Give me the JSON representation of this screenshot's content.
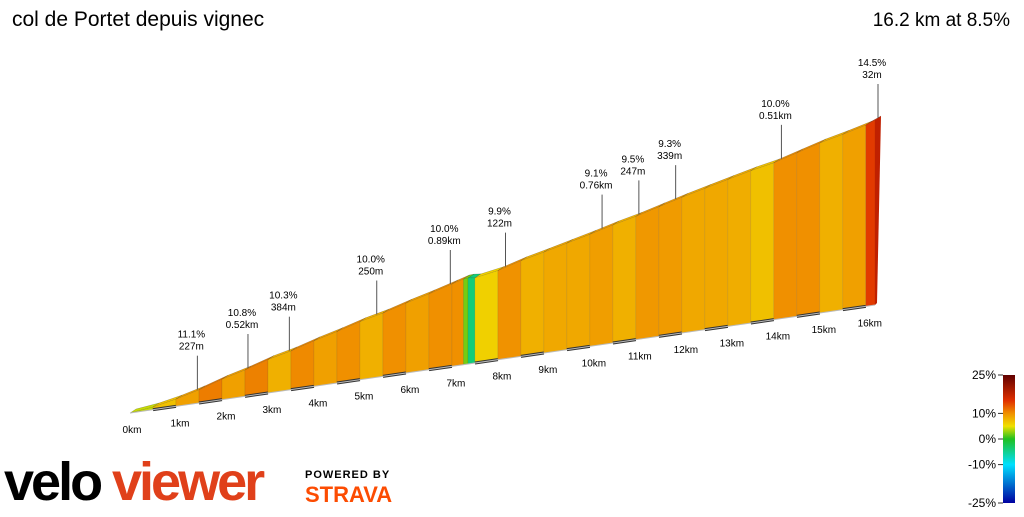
{
  "chart_data": {
    "type": "profile",
    "title": "col de Portet depuis vignec",
    "summary": "16.2 km at 8.5%",
    "x": [
      0,
      0.5,
      1,
      1.5,
      2,
      2.5,
      3,
      3.5,
      4,
      4.5,
      5,
      5.5,
      6,
      6.5,
      7,
      7.25,
      7.35,
      7.5,
      8,
      8.5,
      9,
      9.5,
      10,
      10.5,
      11,
      11.5,
      12,
      12.5,
      13,
      13.5,
      14,
      14.5,
      15,
      15.5,
      16,
      16.2
    ],
    "gradients": [
      4,
      7,
      9,
      11,
      9,
      10.8,
      8,
      10.3,
      9,
      10,
      8,
      10,
      9,
      10,
      10,
      2,
      -4,
      6,
      9.9,
      8,
      8.5,
      8.5,
      9.1,
      8,
      9.5,
      9.3,
      8.5,
      8.5,
      8.2,
      7,
      10,
      10,
      8,
      9,
      14.5
    ],
    "xticks": [
      {
        "value": 0,
        "label": "0km"
      },
      {
        "value": 1,
        "label": "1km"
      },
      {
        "value": 2,
        "label": "2km"
      },
      {
        "value": 3,
        "label": "3km"
      },
      {
        "value": 4,
        "label": "4km"
      },
      {
        "value": 5,
        "label": "5km"
      },
      {
        "value": 6,
        "label": "6km"
      },
      {
        "value": 7,
        "label": "7km"
      },
      {
        "value": 8,
        "label": "8km"
      },
      {
        "value": 9,
        "label": "9km"
      },
      {
        "value": 10,
        "label": "10km"
      },
      {
        "value": 11,
        "label": "11km"
      },
      {
        "value": 12,
        "label": "12km"
      },
      {
        "value": 13,
        "label": "13km"
      },
      {
        "value": 14,
        "label": "14km"
      },
      {
        "value": 15,
        "label": "15km"
      },
      {
        "value": 16,
        "label": "16km"
      }
    ],
    "annotations": [
      {
        "x": 1.4,
        "grade": "11.1%",
        "length": "227m"
      },
      {
        "x": 2.5,
        "grade": "10.8%",
        "length": "0.52km"
      },
      {
        "x": 3.4,
        "grade": "10.3%",
        "length": "384m"
      },
      {
        "x": 5.3,
        "grade": "10.0%",
        "length": "250m"
      },
      {
        "x": 6.9,
        "grade": "10.0%",
        "length": "0.89km"
      },
      {
        "x": 8.1,
        "grade": "9.9%",
        "length": "122m"
      },
      {
        "x": 10.2,
        "grade": "9.1%",
        "length": "0.76km"
      },
      {
        "x": 11.0,
        "grade": "9.5%",
        "length": "247m"
      },
      {
        "x": 11.8,
        "grade": "9.3%",
        "length": "339m"
      },
      {
        "x": 14.1,
        "grade": "10.0%",
        "length": "0.51km"
      },
      {
        "x": 16.2,
        "grade": "14.5%",
        "length": "32m"
      }
    ],
    "colorbar": {
      "lim": [
        -25,
        25
      ],
      "ticks": [
        {
          "value": 25,
          "label": "25%"
        },
        {
          "value": 10,
          "label": "10%"
        },
        {
          "value": 0,
          "label": "0%"
        },
        {
          "value": -10,
          "label": "-10%"
        },
        {
          "value": -25,
          "label": "-25%"
        }
      ],
      "stops": [
        [
          -25,
          "#0000a0"
        ],
        [
          -10,
          "#00e0ff"
        ],
        [
          0,
          "#20c020"
        ],
        [
          5,
          "#f0e000"
        ],
        [
          10,
          "#f09000"
        ],
        [
          15,
          "#e03000"
        ],
        [
          25,
          "#600000"
        ]
      ]
    },
    "brand": {
      "logo_left": "velo",
      "logo_right": "viewer",
      "powered": "POWERED BY",
      "strava": "STRAVA"
    }
  }
}
